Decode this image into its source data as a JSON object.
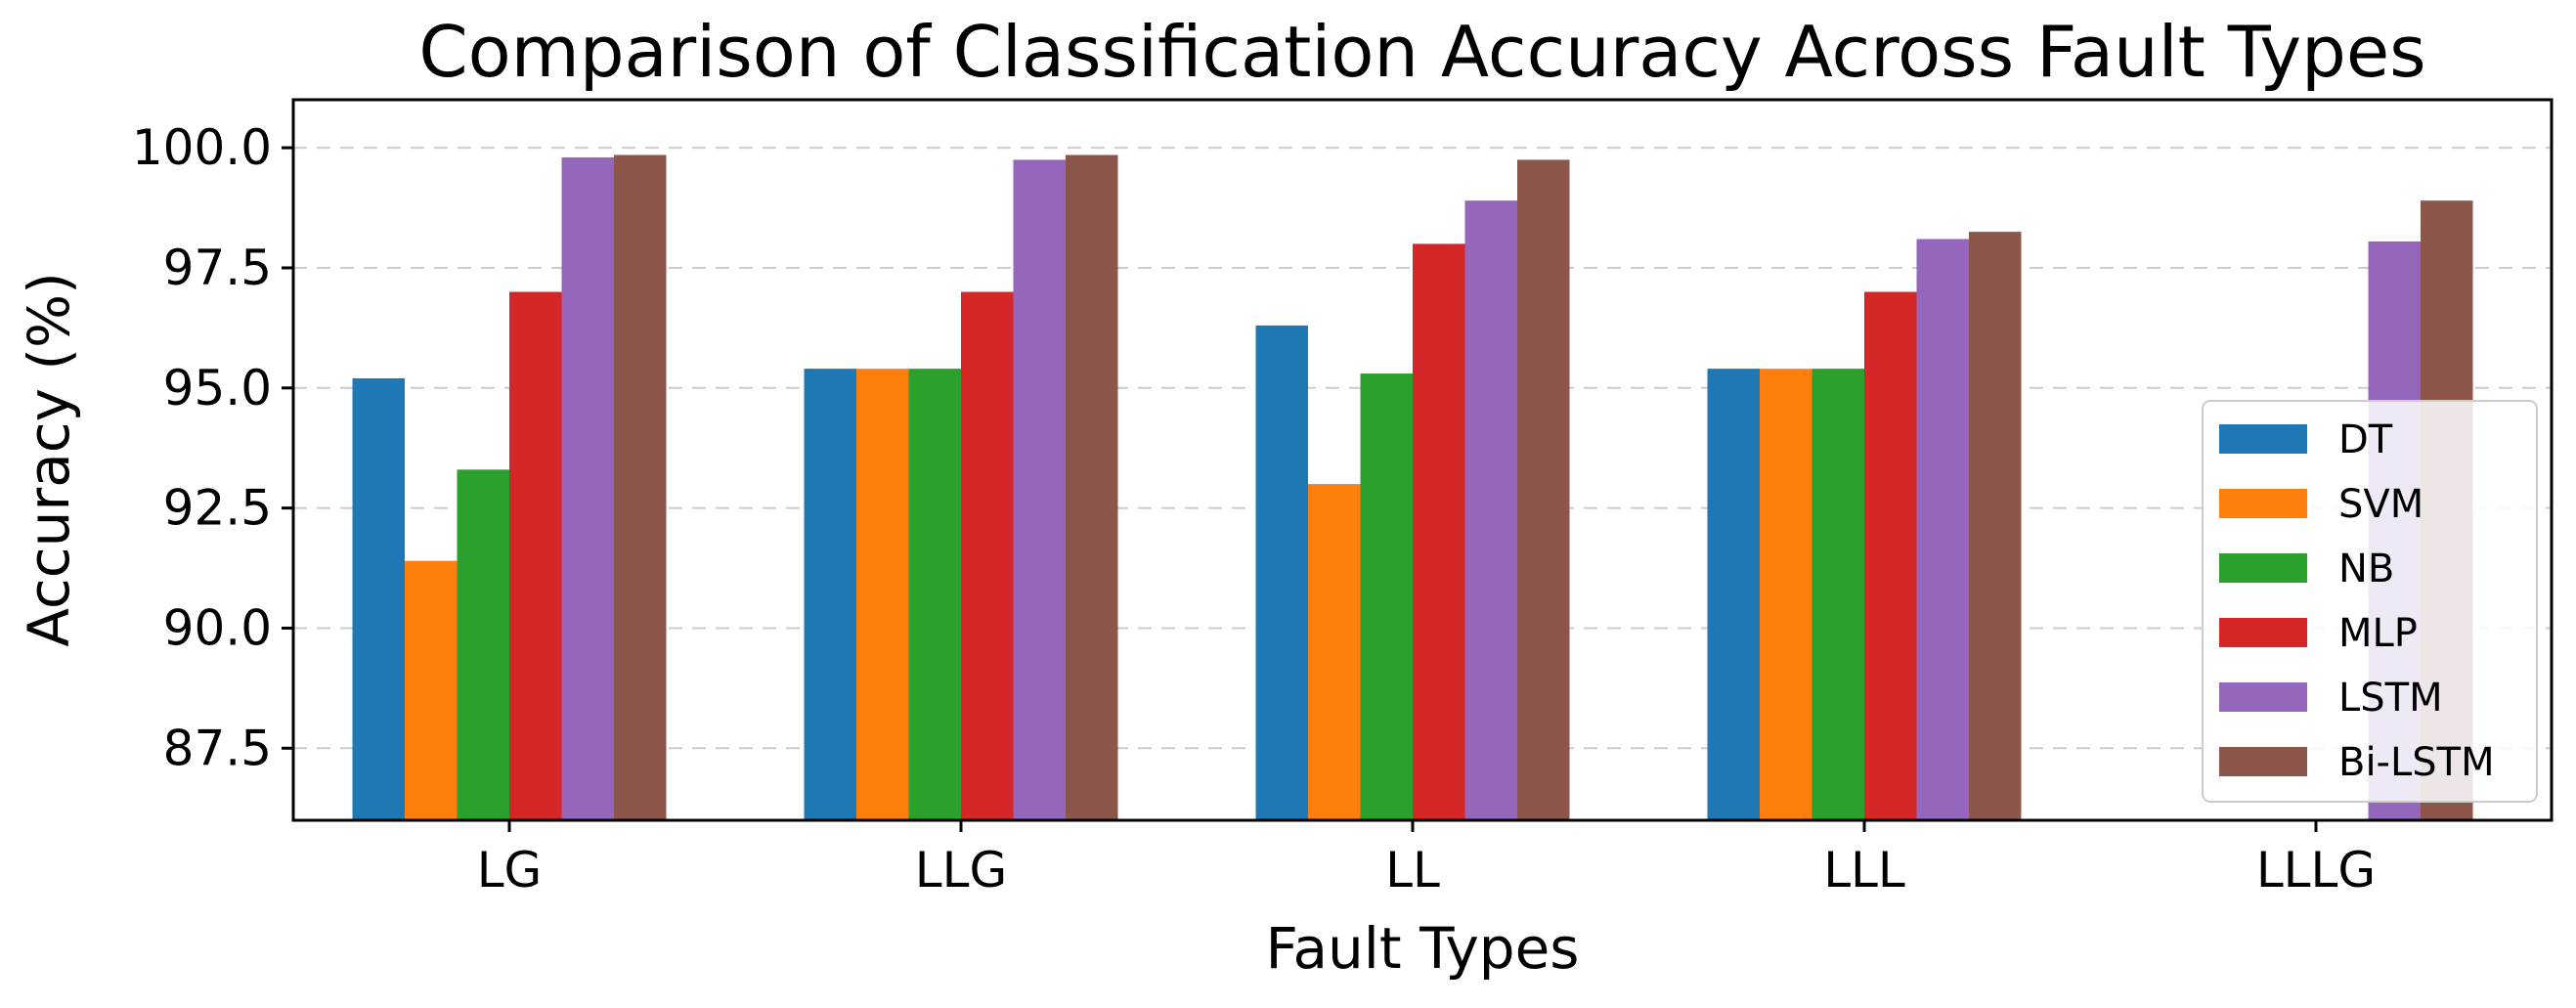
{
  "chart_data": {
    "type": "bar",
    "title": "Comparison of Classification Accuracy Across Fault Types",
    "xlabel": "Fault Types",
    "ylabel": "Accuracy (%)",
    "categories": [
      "LG",
      "LLG",
      "LL",
      "LLL",
      "LLLG"
    ],
    "ylim": [
      86.0,
      101.0
    ],
    "yticks": [
      "87.5",
      "90.0",
      "92.5",
      "95.0",
      "97.5",
      "100.0"
    ],
    "grid": "y-dashed",
    "legend_position": "right",
    "series": [
      {
        "name": "DT",
        "color": "#1f77b4",
        "values": [
          95.2,
          95.4,
          96.3,
          95.4,
          null
        ]
      },
      {
        "name": "SVM",
        "color": "#ff7f0e",
        "values": [
          91.4,
          95.4,
          93.0,
          95.4,
          null
        ]
      },
      {
        "name": "NB",
        "color": "#2ca02c",
        "values": [
          93.3,
          95.4,
          95.3,
          95.4,
          null
        ]
      },
      {
        "name": "MLP",
        "color": "#d62728",
        "values": [
          97.0,
          97.0,
          98.0,
          97.0,
          null
        ]
      },
      {
        "name": "LSTM",
        "color": "#9467bd",
        "values": [
          99.8,
          99.75,
          98.9,
          98.1,
          98.05
        ]
      },
      {
        "name": "Bi-LSTM",
        "color": "#8c564b",
        "values": [
          99.85,
          99.85,
          99.75,
          98.25,
          98.9
        ]
      }
    ]
  }
}
